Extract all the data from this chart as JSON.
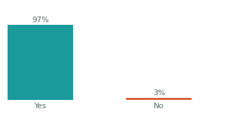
{
  "categories": [
    "Yes",
    "No"
  ],
  "values": [
    97,
    3
  ],
  "bar_colors": [
    "#1a9a9a",
    "#d95f3b"
  ],
  "value_labels": [
    "97%",
    "3%"
  ],
  "background_color": "#ffffff",
  "text_color": "#5a6a6a",
  "ylim": [
    0,
    110
  ],
  "bar_width": 0.55,
  "label_fontsize": 8,
  "tick_fontsize": 8,
  "x_positions": [
    0.3,
    1.3
  ],
  "xlim": [
    0.0,
    1.9
  ]
}
